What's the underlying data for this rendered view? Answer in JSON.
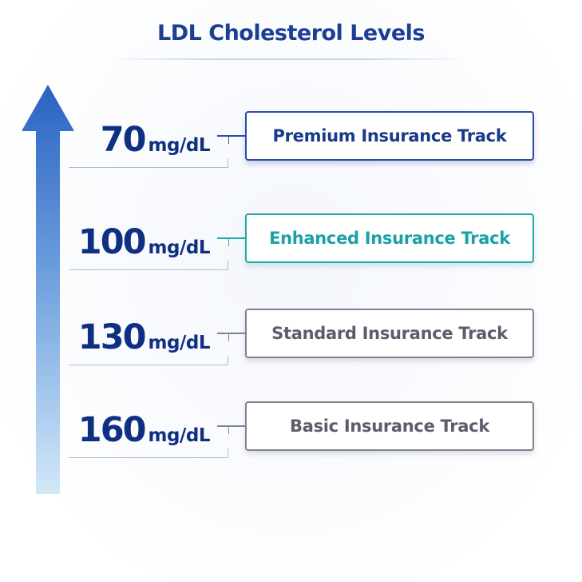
{
  "title": "LDL Cholesterol Levels",
  "levels": [
    {
      "value": "70",
      "unit": "mg/dL",
      "track": "Premium Insurance Track",
      "color": "#2a4ea6"
    },
    {
      "value": "100",
      "unit": "mg/dL",
      "track": "Enhanced Insurance Track",
      "color": "#22a8ad"
    },
    {
      "value": "130",
      "unit": "mg/dL",
      "track": "Standard Insurance Track",
      "color": "#7f8491"
    },
    {
      "value": "160",
      "unit": "mg/dL",
      "track": "Basic Insurance Track",
      "color": "#7f8491"
    }
  ],
  "colors": {
    "title": "#1b3f94",
    "value_text": "#0f2f82",
    "arrow_top": "#2a62c2",
    "arrow_bottom": "#cfe6f8"
  }
}
